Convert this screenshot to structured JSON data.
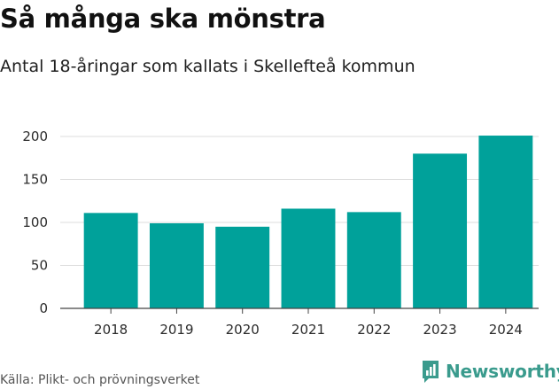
{
  "title": "Så många ska mönstra",
  "subtitle": "Antal 18-åringar som kallats i Skellefteå kommun",
  "source": "Källa: Plikt- och prövningsverket",
  "brand": {
    "name": "Newsworthy"
  },
  "colors": {
    "bar": "#00a19a",
    "grid": "#dcdcdc",
    "axis": "#444444",
    "brand": "#3a9b8d"
  },
  "chart_data": {
    "type": "bar",
    "title": "Så många ska mönstra",
    "subtitle": "Antal 18-åringar som kallats i Skellefteå kommun",
    "xlabel": "",
    "ylabel": "",
    "categories": [
      "2018",
      "2019",
      "2020",
      "2021",
      "2022",
      "2023",
      "2024"
    ],
    "values": [
      111,
      99,
      95,
      116,
      112,
      180,
      201
    ],
    "ylim": [
      0,
      200
    ],
    "yticks": [
      "0",
      "50",
      "100",
      "150",
      "200"
    ],
    "grid": true
  }
}
